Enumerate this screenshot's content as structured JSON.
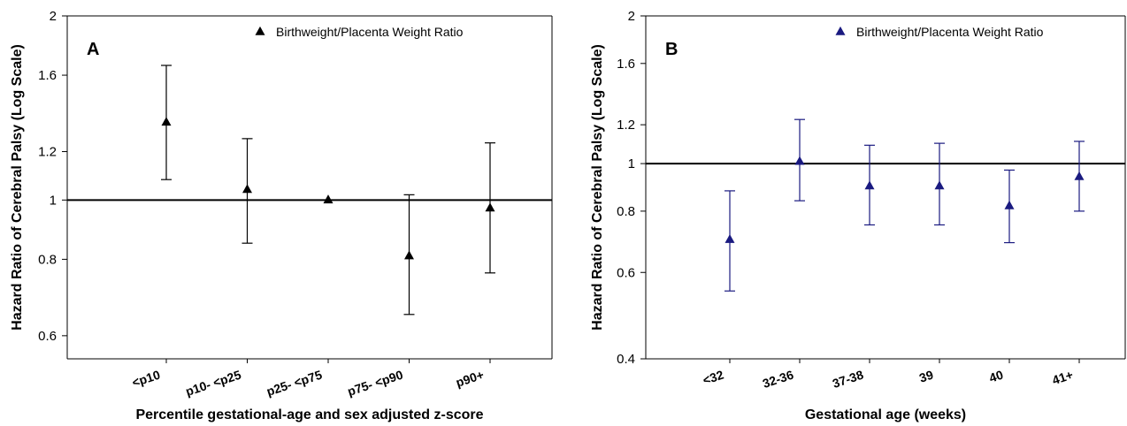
{
  "chart_data": [
    {
      "type": "scatter",
      "panel_label": "A",
      "ylabel": "Hazard Ratio of Cerebral Palsy (Log Scale)",
      "xlabel": "Percentile gestational-age and sex adjusted z-score",
      "y_scale": "log",
      "ylim": [
        0.55,
        2.0
      ],
      "y_ticks": [
        0.6,
        0.8,
        1,
        1.2,
        1.6,
        2
      ],
      "y_tick_labels": [
        "0.6",
        "0.8",
        "1",
        "1.2",
        "1.6",
        "2"
      ],
      "reference_line": 1,
      "grid": false,
      "legend_position": "top-right",
      "categories": [
        "<p10",
        "p10- <p25",
        "p25- <p75",
        "p75- <p90",
        "p90+"
      ],
      "series": [
        {
          "name": "Birthweight/Placenta Weight Ratio",
          "color": "#000000",
          "marker": "triangle",
          "values": [
            1.34,
            1.04,
            1.0,
            0.81,
            0.97
          ],
          "lower": [
            1.08,
            0.85,
            1.0,
            0.65,
            0.76
          ],
          "upper": [
            1.66,
            1.26,
            1.0,
            1.02,
            1.24
          ]
        }
      ]
    },
    {
      "type": "scatter",
      "panel_label": "B",
      "ylabel": "Hazard Ratio of Cerebral Palsy (Log Scale)",
      "xlabel": "Gestational age (weeks)",
      "y_scale": "log",
      "ylim": [
        0.4,
        2.0
      ],
      "y_ticks": [
        0.4,
        0.6,
        0.8,
        1,
        1.2,
        1.6,
        2
      ],
      "y_tick_labels": [
        "0.4",
        "0.6",
        "0.8",
        "1",
        "1.2",
        "1.6",
        "2"
      ],
      "reference_line": 1,
      "grid": false,
      "legend_position": "top-right",
      "categories": [
        "<32",
        "32-36",
        "37-38",
        "39",
        "40",
        "41+"
      ],
      "series": [
        {
          "name": "Birthweight/Placenta Weight Ratio",
          "color": "#1a1a80",
          "marker": "triangle",
          "values": [
            0.7,
            1.01,
            0.9,
            0.9,
            0.82,
            0.94
          ],
          "lower": [
            0.55,
            0.84,
            0.75,
            0.75,
            0.69,
            0.8
          ],
          "upper": [
            0.88,
            1.23,
            1.09,
            1.1,
            0.97,
            1.11
          ]
        }
      ]
    }
  ]
}
